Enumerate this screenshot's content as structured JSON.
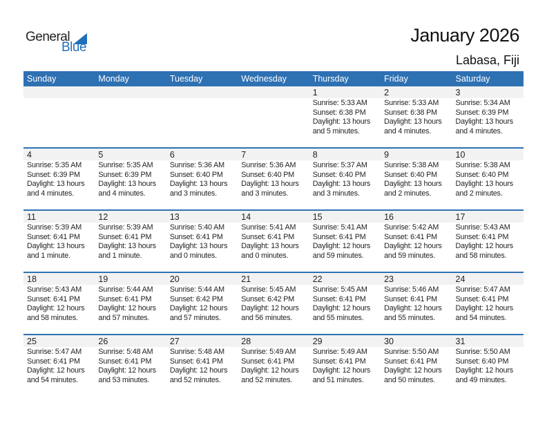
{
  "logo": {
    "text1": "General",
    "text2": "Blue"
  },
  "title": "January 2026",
  "location": "Labasa, Fiji",
  "days": [
    "Sunday",
    "Monday",
    "Tuesday",
    "Wednesday",
    "Thursday",
    "Friday",
    "Saturday"
  ],
  "accent": "#2e71b3",
  "weeks": [
    [
      null,
      null,
      null,
      null,
      {
        "day": "1",
        "sunrise": "Sunrise: 5:33 AM",
        "sunset": "Sunset: 6:38 PM",
        "daylight1": "Daylight: 13 hours",
        "daylight2": "and 5 minutes."
      },
      {
        "day": "2",
        "sunrise": "Sunrise: 5:33 AM",
        "sunset": "Sunset: 6:38 PM",
        "daylight1": "Daylight: 13 hours",
        "daylight2": "and 4 minutes."
      },
      {
        "day": "3",
        "sunrise": "Sunrise: 5:34 AM",
        "sunset": "Sunset: 6:39 PM",
        "daylight1": "Daylight: 13 hours",
        "daylight2": "and 4 minutes."
      }
    ],
    [
      {
        "day": "4",
        "sunrise": "Sunrise: 5:35 AM",
        "sunset": "Sunset: 6:39 PM",
        "daylight1": "Daylight: 13 hours",
        "daylight2": "and 4 minutes."
      },
      {
        "day": "5",
        "sunrise": "Sunrise: 5:35 AM",
        "sunset": "Sunset: 6:39 PM",
        "daylight1": "Daylight: 13 hours",
        "daylight2": "and 4 minutes."
      },
      {
        "day": "6",
        "sunrise": "Sunrise: 5:36 AM",
        "sunset": "Sunset: 6:40 PM",
        "daylight1": "Daylight: 13 hours",
        "daylight2": "and 3 minutes."
      },
      {
        "day": "7",
        "sunrise": "Sunrise: 5:36 AM",
        "sunset": "Sunset: 6:40 PM",
        "daylight1": "Daylight: 13 hours",
        "daylight2": "and 3 minutes."
      },
      {
        "day": "8",
        "sunrise": "Sunrise: 5:37 AM",
        "sunset": "Sunset: 6:40 PM",
        "daylight1": "Daylight: 13 hours",
        "daylight2": "and 3 minutes."
      },
      {
        "day": "9",
        "sunrise": "Sunrise: 5:38 AM",
        "sunset": "Sunset: 6:40 PM",
        "daylight1": "Daylight: 13 hours",
        "daylight2": "and 2 minutes."
      },
      {
        "day": "10",
        "sunrise": "Sunrise: 5:38 AM",
        "sunset": "Sunset: 6:40 PM",
        "daylight1": "Daylight: 13 hours",
        "daylight2": "and 2 minutes."
      }
    ],
    [
      {
        "day": "11",
        "sunrise": "Sunrise: 5:39 AM",
        "sunset": "Sunset: 6:41 PM",
        "daylight1": "Daylight: 13 hours",
        "daylight2": "and 1 minute."
      },
      {
        "day": "12",
        "sunrise": "Sunrise: 5:39 AM",
        "sunset": "Sunset: 6:41 PM",
        "daylight1": "Daylight: 13 hours",
        "daylight2": "and 1 minute."
      },
      {
        "day": "13",
        "sunrise": "Sunrise: 5:40 AM",
        "sunset": "Sunset: 6:41 PM",
        "daylight1": "Daylight: 13 hours",
        "daylight2": "and 0 minutes."
      },
      {
        "day": "14",
        "sunrise": "Sunrise: 5:41 AM",
        "sunset": "Sunset: 6:41 PM",
        "daylight1": "Daylight: 13 hours",
        "daylight2": "and 0 minutes."
      },
      {
        "day": "15",
        "sunrise": "Sunrise: 5:41 AM",
        "sunset": "Sunset: 6:41 PM",
        "daylight1": "Daylight: 12 hours",
        "daylight2": "and 59 minutes."
      },
      {
        "day": "16",
        "sunrise": "Sunrise: 5:42 AM",
        "sunset": "Sunset: 6:41 PM",
        "daylight1": "Daylight: 12 hours",
        "daylight2": "and 59 minutes."
      },
      {
        "day": "17",
        "sunrise": "Sunrise: 5:43 AM",
        "sunset": "Sunset: 6:41 PM",
        "daylight1": "Daylight: 12 hours",
        "daylight2": "and 58 minutes."
      }
    ],
    [
      {
        "day": "18",
        "sunrise": "Sunrise: 5:43 AM",
        "sunset": "Sunset: 6:41 PM",
        "daylight1": "Daylight: 12 hours",
        "daylight2": "and 58 minutes."
      },
      {
        "day": "19",
        "sunrise": "Sunrise: 5:44 AM",
        "sunset": "Sunset: 6:41 PM",
        "daylight1": "Daylight: 12 hours",
        "daylight2": "and 57 minutes."
      },
      {
        "day": "20",
        "sunrise": "Sunrise: 5:44 AM",
        "sunset": "Sunset: 6:42 PM",
        "daylight1": "Daylight: 12 hours",
        "daylight2": "and 57 minutes."
      },
      {
        "day": "21",
        "sunrise": "Sunrise: 5:45 AM",
        "sunset": "Sunset: 6:42 PM",
        "daylight1": "Daylight: 12 hours",
        "daylight2": "and 56 minutes."
      },
      {
        "day": "22",
        "sunrise": "Sunrise: 5:45 AM",
        "sunset": "Sunset: 6:41 PM",
        "daylight1": "Daylight: 12 hours",
        "daylight2": "and 55 minutes."
      },
      {
        "day": "23",
        "sunrise": "Sunrise: 5:46 AM",
        "sunset": "Sunset: 6:41 PM",
        "daylight1": "Daylight: 12 hours",
        "daylight2": "and 55 minutes."
      },
      {
        "day": "24",
        "sunrise": "Sunrise: 5:47 AM",
        "sunset": "Sunset: 6:41 PM",
        "daylight1": "Daylight: 12 hours",
        "daylight2": "and 54 minutes."
      }
    ],
    [
      {
        "day": "25",
        "sunrise": "Sunrise: 5:47 AM",
        "sunset": "Sunset: 6:41 PM",
        "daylight1": "Daylight: 12 hours",
        "daylight2": "and 54 minutes."
      },
      {
        "day": "26",
        "sunrise": "Sunrise: 5:48 AM",
        "sunset": "Sunset: 6:41 PM",
        "daylight1": "Daylight: 12 hours",
        "daylight2": "and 53 minutes."
      },
      {
        "day": "27",
        "sunrise": "Sunrise: 5:48 AM",
        "sunset": "Sunset: 6:41 PM",
        "daylight1": "Daylight: 12 hours",
        "daylight2": "and 52 minutes."
      },
      {
        "day": "28",
        "sunrise": "Sunrise: 5:49 AM",
        "sunset": "Sunset: 6:41 PM",
        "daylight1": "Daylight: 12 hours",
        "daylight2": "and 52 minutes."
      },
      {
        "day": "29",
        "sunrise": "Sunrise: 5:49 AM",
        "sunset": "Sunset: 6:41 PM",
        "daylight1": "Daylight: 12 hours",
        "daylight2": "and 51 minutes."
      },
      {
        "day": "30",
        "sunrise": "Sunrise: 5:50 AM",
        "sunset": "Sunset: 6:41 PM",
        "daylight1": "Daylight: 12 hours",
        "daylight2": "and 50 minutes."
      },
      {
        "day": "31",
        "sunrise": "Sunrise: 5:50 AM",
        "sunset": "Sunset: 6:40 PM",
        "daylight1": "Daylight: 12 hours",
        "daylight2": "and 49 minutes."
      }
    ]
  ]
}
